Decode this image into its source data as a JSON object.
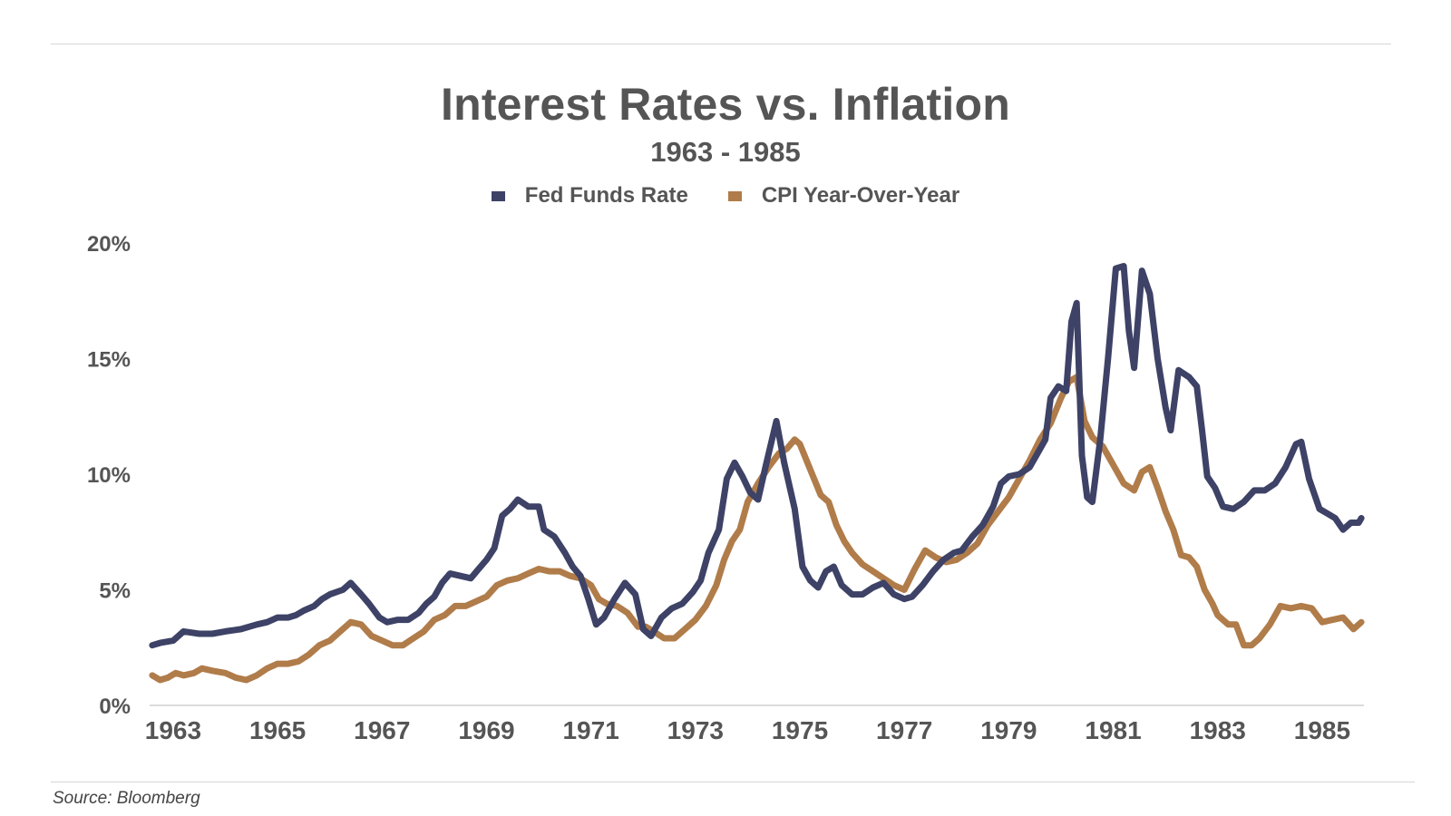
{
  "source": "Source: Bloomberg",
  "chart_data": {
    "type": "line",
    "title": "Interest Rates vs. Inflation",
    "subtitle": "1963 - 1985",
    "xlim": [
      1962.55,
      1985.8
    ],
    "ylim": [
      0,
      20
    ],
    "y_ticks": [
      0,
      5,
      10,
      15,
      20
    ],
    "y_tick_labels": [
      "0%",
      "5%",
      "10%",
      "15%",
      "20%"
    ],
    "x_ticks": [
      1963,
      1965,
      1967,
      1969,
      1971,
      1973,
      1975,
      1977,
      1979,
      1981,
      1983,
      1985
    ],
    "x_tick_labels": [
      "1963",
      "1965",
      "1967",
      "1969",
      "1971",
      "1973",
      "1975",
      "1977",
      "1979",
      "1981",
      "1983",
      "1985"
    ],
    "grid": false,
    "legend_position": "top-center",
    "series": [
      {
        "name": "Fed Funds Rate",
        "color": "#3d4266",
        "points": [
          [
            1962.6,
            2.6
          ],
          [
            1962.75,
            2.7
          ],
          [
            1963.0,
            2.8
          ],
          [
            1963.2,
            3.2
          ],
          [
            1963.5,
            3.1
          ],
          [
            1963.75,
            3.1
          ],
          [
            1964.0,
            3.2
          ],
          [
            1964.3,
            3.3
          ],
          [
            1964.6,
            3.5
          ],
          [
            1964.8,
            3.6
          ],
          [
            1965.0,
            3.8
          ],
          [
            1965.2,
            3.8
          ],
          [
            1965.35,
            3.9
          ],
          [
            1965.5,
            4.1
          ],
          [
            1965.7,
            4.3
          ],
          [
            1965.85,
            4.6
          ],
          [
            1966.0,
            4.8
          ],
          [
            1966.25,
            5.0
          ],
          [
            1966.4,
            5.3
          ],
          [
            1966.6,
            4.8
          ],
          [
            1966.75,
            4.4
          ],
          [
            1966.95,
            3.8
          ],
          [
            1967.1,
            3.6
          ],
          [
            1967.3,
            3.7
          ],
          [
            1967.5,
            3.7
          ],
          [
            1967.7,
            4.0
          ],
          [
            1967.85,
            4.4
          ],
          [
            1968.0,
            4.7
          ],
          [
            1968.15,
            5.3
          ],
          [
            1968.3,
            5.7
          ],
          [
            1968.5,
            5.6
          ],
          [
            1968.7,
            5.5
          ],
          [
            1968.85,
            5.9
          ],
          [
            1969.0,
            6.3
          ],
          [
            1969.15,
            6.8
          ],
          [
            1969.3,
            8.2
          ],
          [
            1969.45,
            8.5
          ],
          [
            1969.6,
            8.9
          ],
          [
            1969.8,
            8.6
          ],
          [
            1970.0,
            8.6
          ],
          [
            1970.1,
            7.6
          ],
          [
            1970.3,
            7.3
          ],
          [
            1970.5,
            6.6
          ],
          [
            1970.65,
            6.0
          ],
          [
            1970.8,
            5.6
          ],
          [
            1970.95,
            4.6
          ],
          [
            1971.1,
            3.5
          ],
          [
            1971.25,
            3.8
          ],
          [
            1971.45,
            4.6
          ],
          [
            1971.65,
            5.3
          ],
          [
            1971.85,
            4.8
          ],
          [
            1972.0,
            3.3
          ],
          [
            1972.15,
            3.0
          ],
          [
            1972.35,
            3.8
          ],
          [
            1972.55,
            4.2
          ],
          [
            1972.75,
            4.4
          ],
          [
            1972.95,
            4.9
          ],
          [
            1973.1,
            5.4
          ],
          [
            1973.25,
            6.6
          ],
          [
            1973.45,
            7.6
          ],
          [
            1973.6,
            9.8
          ],
          [
            1973.75,
            10.5
          ],
          [
            1973.9,
            9.9
          ],
          [
            1974.05,
            9.2
          ],
          [
            1974.2,
            8.9
          ],
          [
            1974.35,
            10.4
          ],
          [
            1974.55,
            12.3
          ],
          [
            1974.7,
            10.5
          ],
          [
            1974.9,
            8.5
          ],
          [
            1975.05,
            6.0
          ],
          [
            1975.2,
            5.4
          ],
          [
            1975.35,
            5.1
          ],
          [
            1975.5,
            5.8
          ],
          [
            1975.65,
            6.0
          ],
          [
            1975.8,
            5.2
          ],
          [
            1976.0,
            4.8
          ],
          [
            1976.2,
            4.8
          ],
          [
            1976.4,
            5.1
          ],
          [
            1976.6,
            5.3
          ],
          [
            1976.8,
            4.8
          ],
          [
            1977.0,
            4.6
          ],
          [
            1977.15,
            4.7
          ],
          [
            1977.35,
            5.2
          ],
          [
            1977.55,
            5.8
          ],
          [
            1977.75,
            6.3
          ],
          [
            1977.95,
            6.6
          ],
          [
            1978.1,
            6.7
          ],
          [
            1978.3,
            7.3
          ],
          [
            1978.5,
            7.8
          ],
          [
            1978.7,
            8.6
          ],
          [
            1978.85,
            9.6
          ],
          [
            1979.0,
            9.9
          ],
          [
            1979.2,
            10.0
          ],
          [
            1979.4,
            10.3
          ],
          [
            1979.55,
            10.9
          ],
          [
            1979.7,
            11.5
          ],
          [
            1979.8,
            13.3
          ],
          [
            1979.95,
            13.8
          ],
          [
            1980.1,
            13.6
          ],
          [
            1980.2,
            16.6
          ],
          [
            1980.3,
            17.4
          ],
          [
            1980.4,
            10.8
          ],
          [
            1980.5,
            9.0
          ],
          [
            1980.6,
            8.8
          ],
          [
            1980.75,
            11.5
          ],
          [
            1980.9,
            15.0
          ],
          [
            1981.05,
            18.9
          ],
          [
            1981.2,
            19.0
          ],
          [
            1981.3,
            16.2
          ],
          [
            1981.4,
            14.6
          ],
          [
            1981.55,
            18.8
          ],
          [
            1981.7,
            17.8
          ],
          [
            1981.85,
            15.0
          ],
          [
            1982.0,
            12.9
          ],
          [
            1982.1,
            11.9
          ],
          [
            1982.25,
            14.5
          ],
          [
            1982.45,
            14.2
          ],
          [
            1982.6,
            13.8
          ],
          [
            1982.7,
            11.9
          ],
          [
            1982.8,
            9.9
          ],
          [
            1982.95,
            9.4
          ],
          [
            1983.1,
            8.6
          ],
          [
            1983.3,
            8.5
          ],
          [
            1983.5,
            8.8
          ],
          [
            1983.7,
            9.3
          ],
          [
            1983.9,
            9.3
          ],
          [
            1984.1,
            9.6
          ],
          [
            1984.3,
            10.3
          ],
          [
            1984.5,
            11.3
          ],
          [
            1984.6,
            11.4
          ],
          [
            1984.75,
            9.8
          ],
          [
            1984.95,
            8.5
          ],
          [
            1985.1,
            8.3
          ],
          [
            1985.25,
            8.1
          ],
          [
            1985.4,
            7.6
          ],
          [
            1985.55,
            7.9
          ],
          [
            1985.7,
            7.9
          ],
          [
            1985.75,
            8.1
          ]
        ]
      },
      {
        "name": "CPI Year-Over-Year",
        "color": "#b07c4a",
        "points": [
          [
            1962.6,
            1.3
          ],
          [
            1962.75,
            1.1
          ],
          [
            1962.9,
            1.2
          ],
          [
            1963.05,
            1.4
          ],
          [
            1963.2,
            1.3
          ],
          [
            1963.4,
            1.4
          ],
          [
            1963.55,
            1.6
          ],
          [
            1963.75,
            1.5
          ],
          [
            1964.0,
            1.4
          ],
          [
            1964.2,
            1.2
          ],
          [
            1964.4,
            1.1
          ],
          [
            1964.6,
            1.3
          ],
          [
            1964.8,
            1.6
          ],
          [
            1965.0,
            1.8
          ],
          [
            1965.2,
            1.8
          ],
          [
            1965.4,
            1.9
          ],
          [
            1965.6,
            2.2
          ],
          [
            1965.8,
            2.6
          ],
          [
            1966.0,
            2.8
          ],
          [
            1966.2,
            3.2
          ],
          [
            1966.4,
            3.6
          ],
          [
            1966.6,
            3.5
          ],
          [
            1966.8,
            3.0
          ],
          [
            1967.0,
            2.8
          ],
          [
            1967.2,
            2.6
          ],
          [
            1967.4,
            2.6
          ],
          [
            1967.6,
            2.9
          ],
          [
            1967.8,
            3.2
          ],
          [
            1968.0,
            3.7
          ],
          [
            1968.2,
            3.9
          ],
          [
            1968.4,
            4.3
          ],
          [
            1968.6,
            4.3
          ],
          [
            1968.8,
            4.5
          ],
          [
            1969.0,
            4.7
          ],
          [
            1969.2,
            5.2
          ],
          [
            1969.4,
            5.4
          ],
          [
            1969.6,
            5.5
          ],
          [
            1969.8,
            5.7
          ],
          [
            1970.0,
            5.9
          ],
          [
            1970.2,
            5.8
          ],
          [
            1970.4,
            5.8
          ],
          [
            1970.6,
            5.6
          ],
          [
            1970.8,
            5.5
          ],
          [
            1971.0,
            5.2
          ],
          [
            1971.15,
            4.6
          ],
          [
            1971.3,
            4.4
          ],
          [
            1971.5,
            4.3
          ],
          [
            1971.7,
            4.0
          ],
          [
            1971.9,
            3.4
          ],
          [
            1972.05,
            3.4
          ],
          [
            1972.2,
            3.2
          ],
          [
            1972.4,
            2.9
          ],
          [
            1972.6,
            2.9
          ],
          [
            1972.8,
            3.3
          ],
          [
            1973.0,
            3.7
          ],
          [
            1973.2,
            4.3
          ],
          [
            1973.4,
            5.2
          ],
          [
            1973.55,
            6.3
          ],
          [
            1973.7,
            7.1
          ],
          [
            1973.85,
            7.6
          ],
          [
            1974.0,
            8.8
          ],
          [
            1974.2,
            9.6
          ],
          [
            1974.4,
            10.3
          ],
          [
            1974.6,
            10.9
          ],
          [
            1974.75,
            11.1
          ],
          [
            1974.9,
            11.5
          ],
          [
            1975.0,
            11.3
          ],
          [
            1975.2,
            10.2
          ],
          [
            1975.4,
            9.1
          ],
          [
            1975.55,
            8.8
          ],
          [
            1975.7,
            7.8
          ],
          [
            1975.85,
            7.1
          ],
          [
            1976.0,
            6.6
          ],
          [
            1976.2,
            6.1
          ],
          [
            1976.4,
            5.8
          ],
          [
            1976.6,
            5.5
          ],
          [
            1976.8,
            5.2
          ],
          [
            1977.0,
            5.0
          ],
          [
            1977.2,
            5.9
          ],
          [
            1977.4,
            6.7
          ],
          [
            1977.6,
            6.4
          ],
          [
            1977.8,
            6.2
          ],
          [
            1978.0,
            6.3
          ],
          [
            1978.2,
            6.6
          ],
          [
            1978.4,
            7.0
          ],
          [
            1978.6,
            7.8
          ],
          [
            1978.8,
            8.4
          ],
          [
            1979.0,
            9.0
          ],
          [
            1979.2,
            9.8
          ],
          [
            1979.4,
            10.6
          ],
          [
            1979.6,
            11.5
          ],
          [
            1979.8,
            12.2
          ],
          [
            1980.0,
            13.3
          ],
          [
            1980.15,
            14.0
          ],
          [
            1980.3,
            14.2
          ],
          [
            1980.45,
            12.3
          ],
          [
            1980.6,
            11.6
          ],
          [
            1980.8,
            11.2
          ],
          [
            1981.0,
            10.4
          ],
          [
            1981.2,
            9.6
          ],
          [
            1981.4,
            9.3
          ],
          [
            1981.55,
            10.1
          ],
          [
            1981.7,
            10.3
          ],
          [
            1981.85,
            9.4
          ],
          [
            1982.0,
            8.4
          ],
          [
            1982.15,
            7.6
          ],
          [
            1982.3,
            6.5
          ],
          [
            1982.45,
            6.4
          ],
          [
            1982.6,
            6.0
          ],
          [
            1982.75,
            5.0
          ],
          [
            1982.9,
            4.4
          ],
          [
            1983.0,
            3.9
          ],
          [
            1983.2,
            3.5
          ],
          [
            1983.35,
            3.5
          ],
          [
            1983.5,
            2.6
          ],
          [
            1983.65,
            2.6
          ],
          [
            1983.8,
            2.9
          ],
          [
            1984.0,
            3.5
          ],
          [
            1984.2,
            4.3
          ],
          [
            1984.4,
            4.2
          ],
          [
            1984.6,
            4.3
          ],
          [
            1984.8,
            4.2
          ],
          [
            1985.0,
            3.6
          ],
          [
            1985.2,
            3.7
          ],
          [
            1985.4,
            3.8
          ],
          [
            1985.6,
            3.3
          ],
          [
            1985.75,
            3.6
          ]
        ]
      }
    ]
  }
}
